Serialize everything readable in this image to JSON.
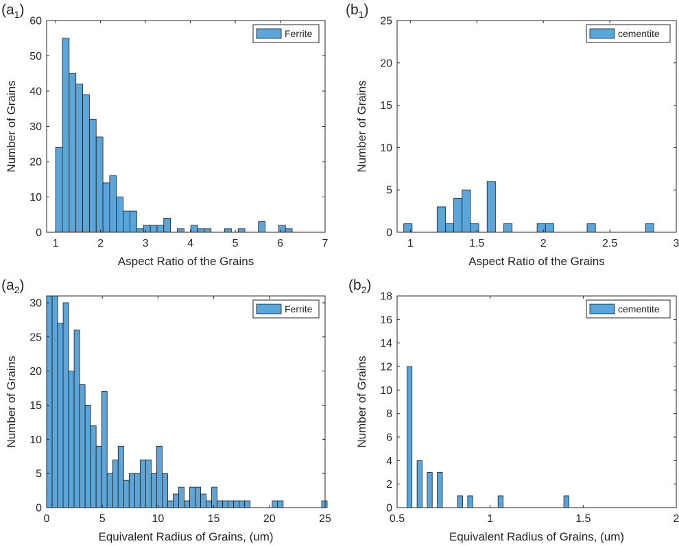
{
  "colors": {
    "bar_fill": "#5aa5d9",
    "bar_stroke": "#1a1a1a",
    "axis": "#262626"
  },
  "panels": [
    {
      "label_main": "(a",
      "label_sub": "1",
      "label_close": ")"
    },
    {
      "label_main": "(b",
      "label_sub": "1",
      "label_close": ")"
    },
    {
      "label_main": "(a",
      "label_sub": "2",
      "label_close": ")"
    },
    {
      "label_main": "(b",
      "label_sub": "2",
      "label_close": ")"
    }
  ],
  "chart_data": [
    {
      "type": "bar",
      "subtype": "histogram",
      "title": "",
      "xlabel": "Aspect Ratio of the Grains",
      "ylabel": "Number of Grains",
      "xlim": [
        0.8,
        7
      ],
      "ylim": [
        0,
        60
      ],
      "xticks": [
        1,
        2,
        3,
        4,
        5,
        6,
        7
      ],
      "yticks": [
        0,
        10,
        20,
        30,
        40,
        50,
        60
      ],
      "legend": {
        "entry": "Ferrite",
        "location": "top-right"
      },
      "grid": false,
      "bin_edges_start": 1.0,
      "bin_width": 0.1505,
      "series": [
        {
          "name": "Ferrite",
          "values": [
            24,
            55,
            45,
            42,
            39,
            32,
            27,
            14,
            16,
            10,
            6,
            6,
            1,
            2,
            2,
            2,
            4,
            0,
            1,
            0,
            2,
            1,
            1,
            0,
            0,
            1,
            0,
            1,
            0,
            0,
            3,
            0,
            0,
            2,
            1
          ]
        }
      ]
    },
    {
      "type": "bar",
      "subtype": "histogram",
      "title": "",
      "xlabel": "Aspect Ratio of the Grains",
      "ylabel": "Number of Grains",
      "xlim": [
        0.9,
        3
      ],
      "ylim": [
        0,
        25
      ],
      "xticks": [
        1,
        1.5,
        2,
        2.5,
        3
      ],
      "xticklabels": [
        "1",
        "1.5",
        "2",
        "2.5",
        "3"
      ],
      "yticks": [
        0,
        5,
        10,
        15,
        20,
        25
      ],
      "legend": {
        "entry": "cementite",
        "location": "top-right"
      },
      "grid": false,
      "bin_edges_start": 0.95,
      "bin_width": 0.0627,
      "series": [
        {
          "name": "cementite",
          "values": [
            1,
            0,
            0,
            0,
            3,
            1,
            4,
            5,
            1,
            0,
            6,
            0,
            1,
            0,
            0,
            0,
            1,
            1,
            0,
            0,
            0,
            0,
            1,
            0,
            0,
            0,
            0,
            0,
            0,
            1
          ]
        }
      ]
    },
    {
      "type": "bar",
      "subtype": "histogram",
      "title": "",
      "xlabel": "Equivalent Radius of Grains, (um)",
      "ylabel": "Number of Grains",
      "xlim": [
        0,
        25
      ],
      "ylim": [
        0,
        31
      ],
      "xticks": [
        0,
        5,
        10,
        15,
        20,
        25
      ],
      "yticks": [
        0,
        5,
        10,
        15,
        20,
        25,
        30
      ],
      "legend": {
        "entry": "Ferrite",
        "location": "top-right"
      },
      "grid": false,
      "bin_edges_start": 0.0,
      "bin_width": 0.4938,
      "series": [
        {
          "name": "Ferrite",
          "values": [
            31,
            31,
            27,
            30,
            20,
            26,
            18,
            15,
            12,
            9,
            17,
            5,
            7,
            9,
            4,
            5,
            5,
            7,
            7,
            5,
            9,
            5,
            1,
            2,
            3,
            1,
            3,
            3,
            2,
            1,
            3,
            1,
            1,
            1,
            1,
            1,
            1,
            0,
            0,
            0,
            0,
            1,
            1,
            0,
            0,
            0,
            0,
            0,
            0,
            0,
            1
          ]
        }
      ]
    },
    {
      "type": "bar",
      "subtype": "histogram",
      "title": "",
      "xlabel": "Equivalent Radius of Grains, (um)",
      "ylabel": "Number of Grains",
      "xlim": [
        0.5,
        2
      ],
      "ylim": [
        0,
        18
      ],
      "xticks": [
        0.5,
        1,
        1.5,
        2
      ],
      "xticklabels": [
        "0.5",
        "1",
        "1.5",
        "2"
      ],
      "yticks": [
        0,
        2,
        4,
        6,
        8,
        10,
        12,
        14,
        16,
        18
      ],
      "legend": {
        "entry": "cementite",
        "location": "top-right"
      },
      "grid": false,
      "bin_edges_start": 0.5528,
      "bin_width": 0.0272,
      "series": [
        {
          "name": "cementite",
          "values": [
            12,
            0,
            4,
            0,
            3,
            0,
            3,
            0,
            0,
            0,
            1,
            0,
            1,
            0,
            0,
            0,
            0,
            0,
            1,
            0,
            0,
            0,
            0,
            0,
            0,
            0,
            0,
            0,
            0,
            0,
            0,
            1
          ]
        }
      ]
    }
  ]
}
